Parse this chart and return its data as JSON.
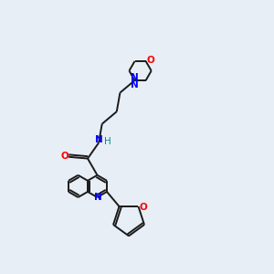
{
  "bg_color": "#e8eef5",
  "bond_color": "#1a1a1a",
  "n_color": "#0000ff",
  "o_color": "#ff0000",
  "h_color": "#008b8b",
  "lw": 1.4,
  "fs": 7.5,
  "xlim": [
    0,
    10
  ],
  "ylim": [
    0,
    10
  ]
}
